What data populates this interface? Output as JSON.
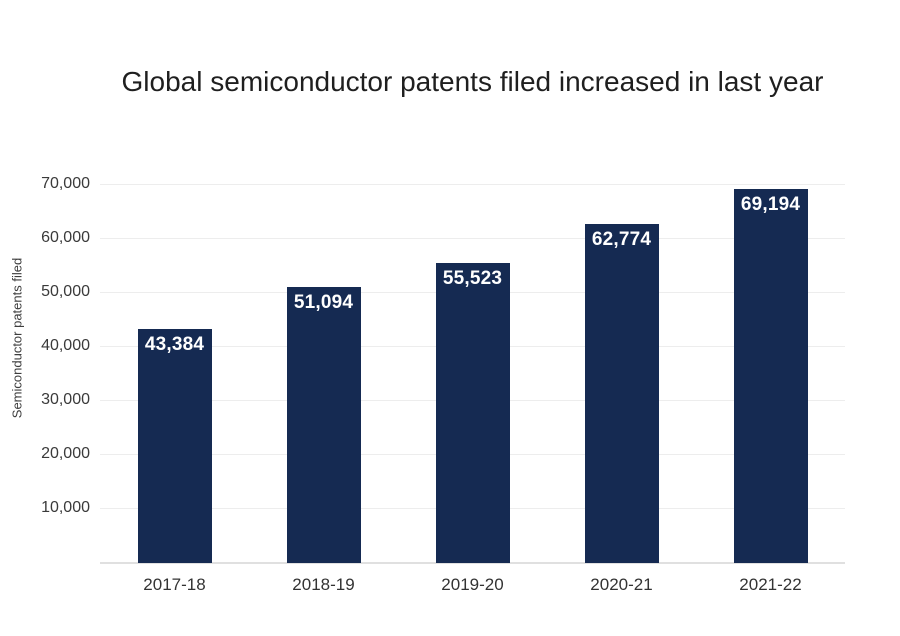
{
  "chart_data": {
    "type": "bar",
    "title": "Global semiconductor patents filed increased in last year",
    "xlabel": "",
    "ylabel": "Semiconductor patents filed",
    "categories": [
      "2017-18",
      "2018-19",
      "2019-20",
      "2020-21",
      "2021-22"
    ],
    "values": [
      43384,
      51094,
      55523,
      62774,
      69194
    ],
    "value_labels": [
      "43,384",
      "51,094",
      "55,523",
      "62,774",
      "69,194"
    ],
    "ylim": [
      0,
      70000
    ],
    "yticks": [
      10000,
      20000,
      30000,
      40000,
      50000,
      60000,
      70000
    ],
    "ytick_labels": [
      "10,000",
      "20,000",
      "30,000",
      "40,000",
      "50,000",
      "60,000",
      "70,000"
    ],
    "grid": "horizontal",
    "legend": "none",
    "colors": {
      "background": "#ffffff",
      "bar": "#152a52",
      "value_label_text": "#ffffff",
      "gridline": "#ededed",
      "axis_line": "#e0e0e0",
      "title_text": "#1f1f1f",
      "tick_text": "#3a3a3a"
    }
  }
}
